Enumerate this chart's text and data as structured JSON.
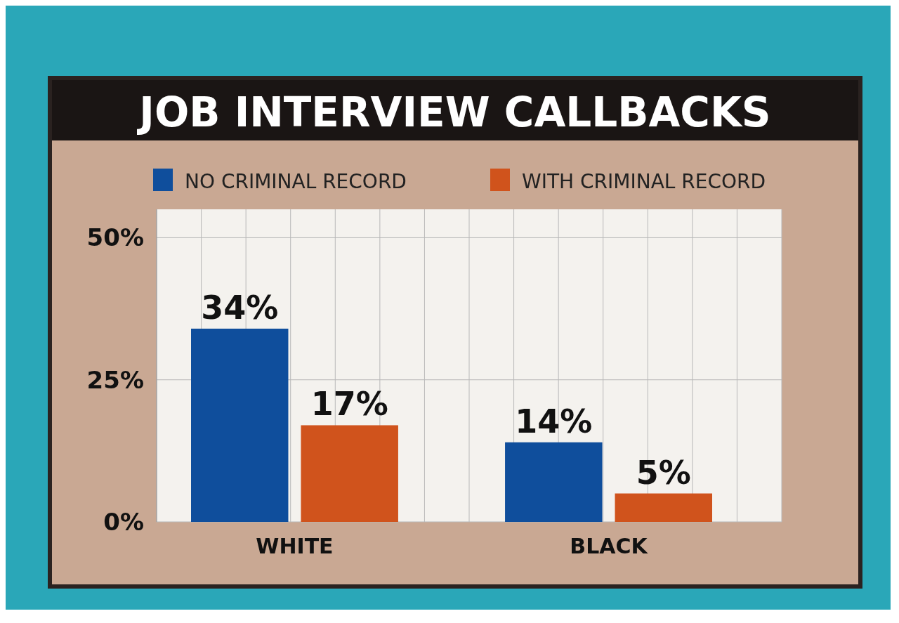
{
  "chart_data": {
    "type": "bar",
    "title": "JOB INTERVIEW CALLBACKS",
    "categories": [
      "WHITE",
      "BLACK"
    ],
    "series": [
      {
        "name": "NO CRIMINAL RECORD",
        "color": "#0f4e9c",
        "values": [
          34,
          14
        ],
        "value_labels": [
          "34%",
          "14%"
        ]
      },
      {
        "name": "WITH CRIMINAL RECORD",
        "color": "#d0531c",
        "values": [
          17,
          5
        ],
        "value_labels": [
          "17%",
          "5%"
        ]
      }
    ],
    "ylim": [
      0,
      55
    ],
    "yticks": [
      {
        "value": 0,
        "label": "0%"
      },
      {
        "value": 25,
        "label": "25%"
      },
      {
        "value": 50,
        "label": "50%"
      }
    ],
    "grid": true,
    "legend": "top"
  }
}
